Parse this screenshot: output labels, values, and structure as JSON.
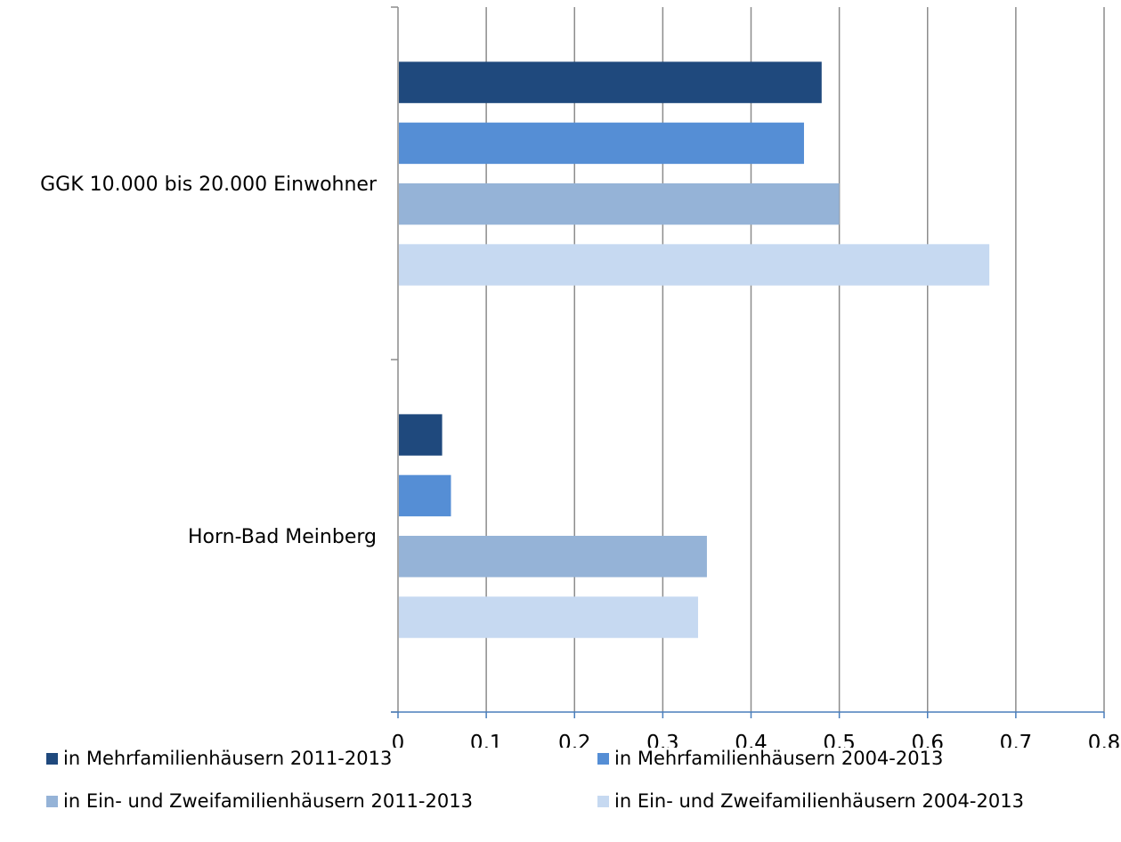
{
  "chart_data": {
    "type": "bar",
    "orientation": "horizontal",
    "categories": [
      "GGK 10.000 bis 20.000 Einwohner",
      "Horn-Bad Meinberg"
    ],
    "series": [
      {
        "name": "in Mehrfamilienhäusern 2011-2013",
        "color": "#1f497d",
        "values": [
          0.48,
          0.05
        ]
      },
      {
        "name": "in Mehrfamilienhäusern 2004-2013",
        "color": "#558ed5",
        "values": [
          0.46,
          0.06
        ]
      },
      {
        "name": "in Ein- und Zweifamilienhäusern 2011-2013",
        "color": "#95b3d7",
        "values": [
          0.5,
          0.35
        ]
      },
      {
        "name": "in Ein- und Zweifamilienhäusern 2004-2013",
        "color": "#c6d9f1",
        "values": [
          0.67,
          0.34
        ]
      }
    ],
    "xlim": [
      0,
      0.8
    ],
    "xticks": [
      "0",
      "0,1",
      "0,2",
      "0,3",
      "0,4",
      "0,5",
      "0,6",
      "0,7",
      "0,8"
    ],
    "grid": true,
    "legend_position": "bottom"
  }
}
